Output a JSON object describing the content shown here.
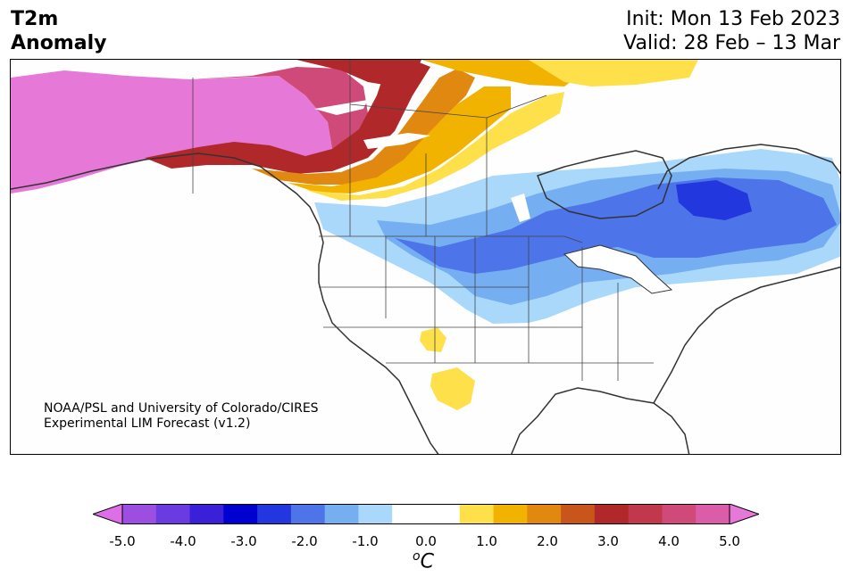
{
  "header": {
    "title_line1": "T2m",
    "title_line2": "Anomaly",
    "init": "Init: Mon 13 Feb 2023",
    "valid": "Valid: 28 Feb – 13 Mar"
  },
  "map": {
    "credit_line1": "NOAA/PSL and University of Colorado/CIRES",
    "credit_line2": "Experimental LIM Forecast (v1.2)"
  },
  "colorbar": {
    "tick_labels": [
      "-5.0",
      "-4.0",
      "-3.0",
      "-2.0",
      "-1.0",
      "0.0",
      "1.0",
      "2.0",
      "3.0",
      "4.0",
      "5.0"
    ],
    "units_base": "o",
    "units_main": "C",
    "colors": [
      "#dc6fe6",
      "#9b4ee0",
      "#6a3be0",
      "#3a20d6",
      "#0000d0",
      "#2337de",
      "#4d74e8",
      "#76aef2",
      "#aad8fa",
      "#ffffff",
      "#ffffff",
      "#fde04a",
      "#f2b300",
      "#e0880f",
      "#c8561a",
      "#b0282a",
      "#c1384c",
      "#cf4a78",
      "#db5ca8",
      "#e678d8"
    ]
  }
}
